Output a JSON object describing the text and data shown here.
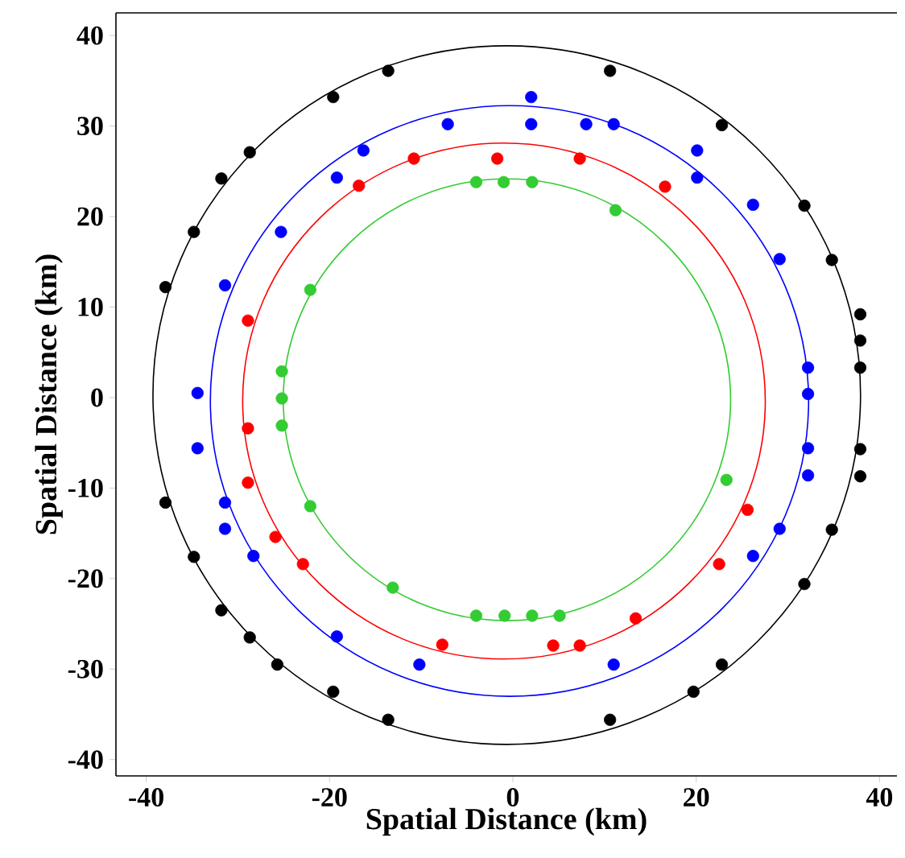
{
  "chart_data": {
    "type": "scatter",
    "xlabel": "Spatial Distance (km)",
    "ylabel": "Spatial Distance (km)",
    "marker": "circle",
    "xlim": [
      -43.3,
      41.9
    ],
    "ylim": [
      -41.8,
      42.5
    ],
    "xticks": [
      -40,
      -20,
      0,
      20,
      40
    ],
    "yticks": [
      -40,
      -30,
      -20,
      -10,
      0,
      10,
      20,
      30,
      40
    ],
    "series": [
      {
        "color": "#000000",
        "x": [
          -13.6,
          -19.6,
          -28.7,
          -31.8,
          -34.8,
          -37.9,
          10.6,
          22.8,
          31.8,
          34.8,
          37.9,
          37.9,
          37.9,
          37.9,
          37.9,
          34.8,
          31.8,
          22.8,
          19.7,
          10.6,
          -37.9,
          -34.8,
          -31.8,
          -28.7,
          -25.7,
          -19.6,
          -13.6
        ],
        "values": [
          36.1,
          33.2,
          27.1,
          24.2,
          18.3,
          12.2,
          36.1,
          30.1,
          21.2,
          15.2,
          9.2,
          6.3,
          3.3,
          -5.7,
          -8.7,
          -14.6,
          -20.6,
          -29.5,
          -32.5,
          -35.6,
          -11.6,
          -17.6,
          -23.5,
          -26.5,
          -29.5,
          -32.5,
          -35.6
        ]
      },
      {
        "color": "#0000ff",
        "x": [
          -7.1,
          -16.3,
          -19.2,
          -25.3,
          -31.4,
          -34.4,
          2.0,
          2.0,
          8.0,
          11.0,
          20.1,
          20.1,
          26.2,
          29.1,
          32.2,
          32.2,
          32.2,
          32.2,
          29.1,
          26.2,
          11.0,
          -34.4,
          -31.4,
          -31.4,
          -28.3,
          -19.2,
          -10.2
        ],
        "values": [
          30.2,
          27.3,
          24.3,
          18.3,
          12.4,
          0.5,
          33.2,
          30.2,
          30.2,
          30.2,
          27.3,
          24.3,
          21.3,
          15.3,
          3.3,
          0.4,
          -5.6,
          -8.6,
          -14.5,
          -17.5,
          -29.5,
          -5.6,
          -11.6,
          -14.5,
          -17.5,
          -26.4,
          -29.5
        ]
      },
      {
        "color": "#ff0000",
        "x": [
          -1.7,
          -10.8,
          -16.8,
          -28.9,
          7.3,
          16.6,
          25.6,
          22.5,
          13.4,
          7.3,
          4.4,
          -28.9,
          -28.9,
          -25.9,
          -22.9,
          -7.7
        ],
        "values": [
          26.4,
          26.4,
          23.4,
          8.5,
          26.4,
          23.3,
          -12.4,
          -18.4,
          -24.4,
          -27.4,
          -27.4,
          -3.4,
          -9.4,
          -15.4,
          -18.4,
          -27.3
        ]
      },
      {
        "color": "#33cc33",
        "x": [
          -4.0,
          -1.0,
          2.1,
          11.2,
          -22.1,
          -25.2,
          -25.2,
          -25.2,
          23.3,
          5.1,
          2.1,
          -0.9,
          -4.0,
          -22.1,
          -13.1
        ],
        "values": [
          23.8,
          23.8,
          23.8,
          20.7,
          11.9,
          2.9,
          -0.1,
          -3.1,
          -9.1,
          -24.1,
          -24.1,
          -24.1,
          -24.1,
          -12.0,
          -21.0
        ]
      }
    ]
  }
}
